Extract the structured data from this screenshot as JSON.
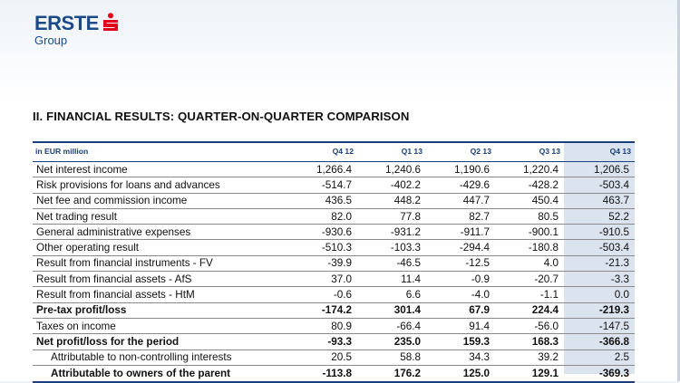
{
  "logo": {
    "brand": "ERSTE",
    "sub": "Group",
    "mark_color": "#e2001a",
    "text_color": "#1a4a8a"
  },
  "title": "II. FINANCIAL RESULTS: QUARTER-ON-QUARTER COMPARISON",
  "table": {
    "unit_label": "in EUR million",
    "columns": [
      "Q4 12",
      "Q1 13",
      "Q2 13",
      "Q3 13",
      "Q4 13"
    ],
    "highlight_color": "#dbe3ef",
    "rows": [
      {
        "label": "Net interest income",
        "values": [
          "1,266.4",
          "1,240.6",
          "1,190.6",
          "1,220.4",
          "1,206.5"
        ]
      },
      {
        "label": "Risk provisions for loans and advances",
        "values": [
          "-514.7",
          "-402.2",
          "-429.6",
          "-428.2",
          "-503.4"
        ]
      },
      {
        "label": "Net fee and commission income",
        "values": [
          "436.5",
          "448.2",
          "447.7",
          "450.4",
          "463.7"
        ]
      },
      {
        "label": "Net trading result",
        "values": [
          "82.0",
          "77.8",
          "82.7",
          "80.5",
          "52.2"
        ]
      },
      {
        "label": "General administrative expenses",
        "values": [
          "-930.6",
          "-931.2",
          "-911.7",
          "-900.1",
          "-910.5"
        ]
      },
      {
        "label": "Other operating result",
        "values": [
          "-510.3",
          "-103.3",
          "-294.4",
          "-180.8",
          "-503.4"
        ]
      },
      {
        "label": "Result from financial instruments - FV",
        "values": [
          "-39.9",
          "-46.5",
          "-12.5",
          "4.0",
          "-21.3"
        ]
      },
      {
        "label": "Result from financial assets - AfS",
        "values": [
          "37.0",
          "11.4",
          "-0.9",
          "-20.7",
          "-3.3"
        ]
      },
      {
        "label": "Result from financial assets - HtM",
        "values": [
          "-0.6",
          "6.6",
          "-4.0",
          "-1.1",
          "0.0"
        ]
      },
      {
        "label": "Pre-tax profit/loss",
        "values": [
          "-174.2",
          "301.4",
          "67.9",
          "224.4",
          "-219.3"
        ]
      },
      {
        "label": "Taxes on income",
        "values": [
          "80.9",
          "-66.4",
          "91.4",
          "-56.0",
          "-147.5"
        ]
      },
      {
        "label": "Net profit/loss for the period",
        "values": [
          "-93.3",
          "235.0",
          "159.3",
          "168.3",
          "-366.8"
        ]
      },
      {
        "label": "Attributable to non-controlling interests",
        "values": [
          "20.5",
          "58.8",
          "34.3",
          "39.2",
          "2.5"
        ]
      },
      {
        "label": "Attributable to owners of the parent",
        "values": [
          "-113.8",
          "176.2",
          "125.0",
          "129.1",
          "-369.3"
        ]
      }
    ]
  }
}
